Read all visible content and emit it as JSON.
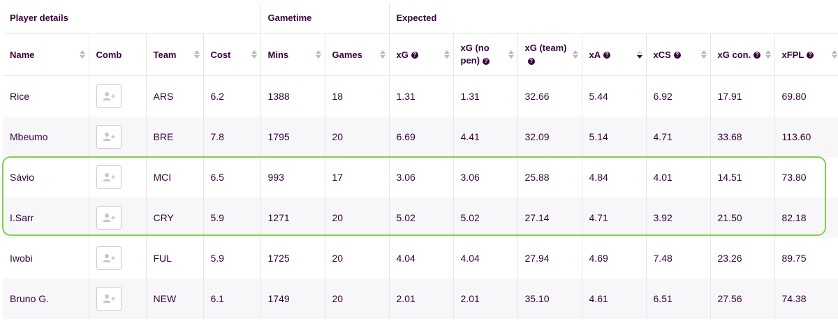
{
  "groups": [
    {
      "label": "Player details"
    },
    {
      "label": "Gametime"
    },
    {
      "label": "Expected"
    }
  ],
  "columns": [
    {
      "label": "Name",
      "help": false,
      "sort": "none"
    },
    {
      "label": "Comb",
      "help": false,
      "sort": "hidden"
    },
    {
      "label": "Team",
      "help": false,
      "sort": "none"
    },
    {
      "label": "Cost",
      "help": false,
      "sort": "none"
    },
    {
      "label": "Mins",
      "help": false,
      "sort": "none"
    },
    {
      "label": "Games",
      "help": false,
      "sort": "none"
    },
    {
      "label": "xG",
      "help": true,
      "sort": "none"
    },
    {
      "label": "xG (no pen)",
      "help": true,
      "sort": "none"
    },
    {
      "label": "xG (team)",
      "help": true,
      "sort": "none"
    },
    {
      "label": "xA",
      "help": true,
      "sort": "desc"
    },
    {
      "label": "xCS",
      "help": true,
      "sort": "none"
    },
    {
      "label": "xG con.",
      "help": true,
      "sort": "none"
    },
    {
      "label": "xFPL",
      "help": true,
      "sort": "none"
    }
  ],
  "rows": [
    {
      "name": "Rice",
      "team": "ARS",
      "cost": "6.2",
      "mins": "1388",
      "games": "18",
      "xg": "1.31",
      "xg_np": "1.31",
      "xg_team": "32.66",
      "xa": "5.44",
      "xcs": "6.92",
      "xg_con": "17.91",
      "xfpl": "69.80"
    },
    {
      "name": "Mbeumo",
      "team": "BRE",
      "cost": "7.8",
      "mins": "1795",
      "games": "20",
      "xg": "6.69",
      "xg_np": "4.41",
      "xg_team": "32.09",
      "xa": "5.14",
      "xcs": "4.71",
      "xg_con": "33.68",
      "xfpl": "113.60"
    },
    {
      "name": "Sávio",
      "team": "MCI",
      "cost": "6.5",
      "mins": "993",
      "games": "17",
      "xg": "3.06",
      "xg_np": "3.06",
      "xg_team": "25.88",
      "xa": "4.84",
      "xcs": "4.01",
      "xg_con": "14.51",
      "xfpl": "73.80"
    },
    {
      "name": "I.Sarr",
      "team": "CRY",
      "cost": "5.9",
      "mins": "1271",
      "games": "20",
      "xg": "5.02",
      "xg_np": "5.02",
      "xg_team": "27.14",
      "xa": "4.71",
      "xcs": "3.92",
      "xg_con": "21.50",
      "xfpl": "82.18"
    },
    {
      "name": "Iwobi",
      "team": "FUL",
      "cost": "5.9",
      "mins": "1725",
      "games": "20",
      "xg": "4.04",
      "xg_np": "4.04",
      "xg_team": "27.94",
      "xa": "4.69",
      "xcs": "7.48",
      "xg_con": "23.26",
      "xfpl": "89.75"
    },
    {
      "name": "Bruno G.",
      "team": "NEW",
      "cost": "6.1",
      "mins": "1749",
      "games": "20",
      "xg": "2.01",
      "xg_np": "2.01",
      "xg_team": "35.10",
      "xa": "4.61",
      "xcs": "6.51",
      "xg_con": "27.56",
      "xfpl": "74.38"
    }
  ],
  "icons": {
    "comb": "add-user-icon",
    "help": "question-icon"
  },
  "colors": {
    "text": "#37003c",
    "highlight": "#7ed24a",
    "stripe": "#f7f7f9"
  }
}
